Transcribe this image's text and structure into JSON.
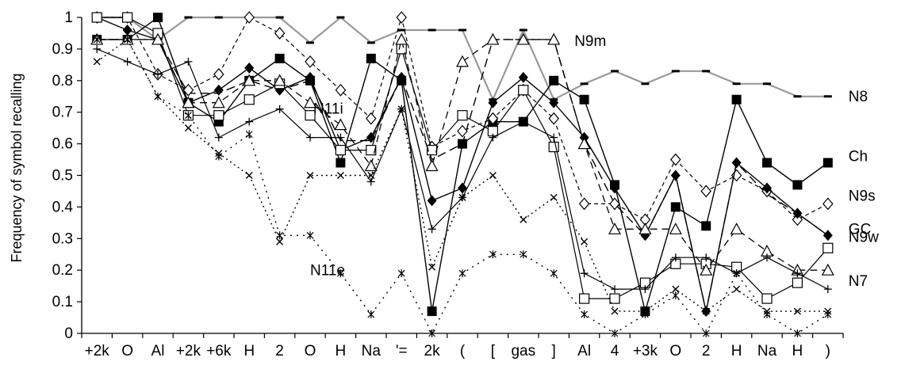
{
  "chart_data": {
    "type": "line",
    "ylabel": "Frequency of symbol recalling",
    "xlabel": "",
    "ylim": [
      0,
      1
    ],
    "yticks": [
      "0",
      "0.1",
      "0.2",
      "0.3",
      "0.4",
      "0.5",
      "0.6",
      "0.7",
      "0.8",
      "0.9",
      "1"
    ],
    "grid": false,
    "categories": [
      "+2k",
      "O",
      "Al",
      "+2k",
      "+6k",
      "H",
      "2",
      "O",
      "H",
      "Na",
      "'=",
      "2k",
      "(",
      "[",
      "gas",
      "]",
      "Al",
      "4",
      "+3k",
      "O",
      "2",
      "H",
      "Na",
      "H",
      ")"
    ],
    "series": [
      {
        "name": "N8",
        "values": [
          1.0,
          1.0,
          0.93,
          1.0,
          1.0,
          1.0,
          1.0,
          0.92,
          1.0,
          0.92,
          0.96,
          0.96,
          0.96,
          0.74,
          0.96,
          0.74,
          0.79,
          0.83,
          0.79,
          0.83,
          0.83,
          0.79,
          0.79,
          0.75,
          0.75
        ]
      },
      {
        "name": "Ch",
        "values": [
          0.93,
          0.93,
          1.0,
          0.73,
          0.67,
          0.8,
          0.87,
          0.8,
          0.54,
          0.87,
          0.8,
          0.07,
          0.6,
          0.67,
          0.67,
          0.8,
          0.74,
          0.47,
          0.07,
          0.4,
          0.34,
          0.74,
          0.54,
          0.47,
          0.54
        ]
      },
      {
        "name": "N9m",
        "values": [
          0.93,
          0.93,
          0.93,
          0.76,
          0.76,
          0.8,
          0.77,
          0.8,
          0.61,
          0.61,
          0.81,
          0.55,
          0.6,
          0.93,
          0.93,
          0.93,
          0.6,
          0.41,
          0.31,
          0.5,
          0.07,
          0.54,
          0.44,
          0.38,
          0.31
        ]
      },
      {
        "name": "N9s",
        "values": [
          1.0,
          1.0,
          0.82,
          0.77,
          0.82,
          1.0,
          0.95,
          0.86,
          0.77,
          0.68,
          1.0,
          0.59,
          0.64,
          0.68,
          0.77,
          0.68,
          0.41,
          0.41,
          0.36,
          0.55,
          0.45,
          0.5,
          0.45,
          0.36,
          0.41
        ]
      },
      {
        "name": "GC",
        "values": [
          1.0,
          0.96,
          0.93,
          0.73,
          0.77,
          0.84,
          0.77,
          0.81,
          0.58,
          0.62,
          0.81,
          0.42,
          0.46,
          0.73,
          0.81,
          0.73,
          0.62,
          0.46,
          0.31,
          0.5,
          0.07,
          0.54,
          0.46,
          0.38,
          0.31
        ]
      },
      {
        "name": "N9w",
        "values": [
          1.0,
          1.0,
          0.95,
          0.69,
          0.69,
          0.74,
          0.79,
          0.69,
          0.58,
          0.58,
          0.9,
          0.58,
          0.69,
          0.64,
          0.77,
          0.59,
          0.11,
          0.11,
          0.16,
          0.22,
          0.22,
          0.21,
          0.11,
          0.16,
          0.27
        ]
      },
      {
        "name": "",
        "values": [
          0.93,
          0.93,
          0.93,
          0.73,
          0.73,
          0.8,
          0.8,
          0.73,
          0.66,
          0.53,
          0.93,
          0.53,
          0.86,
          0.93,
          0.93,
          0.93,
          0.6,
          0.33,
          0.33,
          0.33,
          0.2,
          0.33,
          0.26,
          0.2,
          0.2
        ]
      },
      {
        "name": "N7",
        "values": [
          0.9,
          0.86,
          0.82,
          0.86,
          0.62,
          0.67,
          0.71,
          0.62,
          0.62,
          0.48,
          0.71,
          0.33,
          0.43,
          0.62,
          0.67,
          0.62,
          0.19,
          0.14,
          0.14,
          0.24,
          0.24,
          0.19,
          0.24,
          0.19,
          0.14
        ]
      },
      {
        "name": "N11i",
        "values": [
          0.86,
          0.93,
          0.75,
          0.65,
          0.57,
          0.5,
          0.29,
          0.5,
          0.5,
          0.5,
          0.71,
          0.21,
          0.43,
          0.5,
          0.36,
          0.43,
          0.29,
          0.07,
          0.07,
          0.14,
          0.07,
          0.14,
          0.07,
          0.07,
          0.07
        ]
      },
      {
        "name": "N11e",
        "values": [
          0.93,
          0.93,
          0.75,
          0.69,
          0.56,
          0.63,
          0.31,
          0.31,
          0.19,
          0.06,
          0.19,
          0.0,
          0.19,
          0.25,
          0.25,
          0.19,
          0.06,
          0.0,
          0.06,
          0.12,
          0.0,
          0.19,
          0.06,
          0.0,
          0.06
        ]
      }
    ]
  }
}
